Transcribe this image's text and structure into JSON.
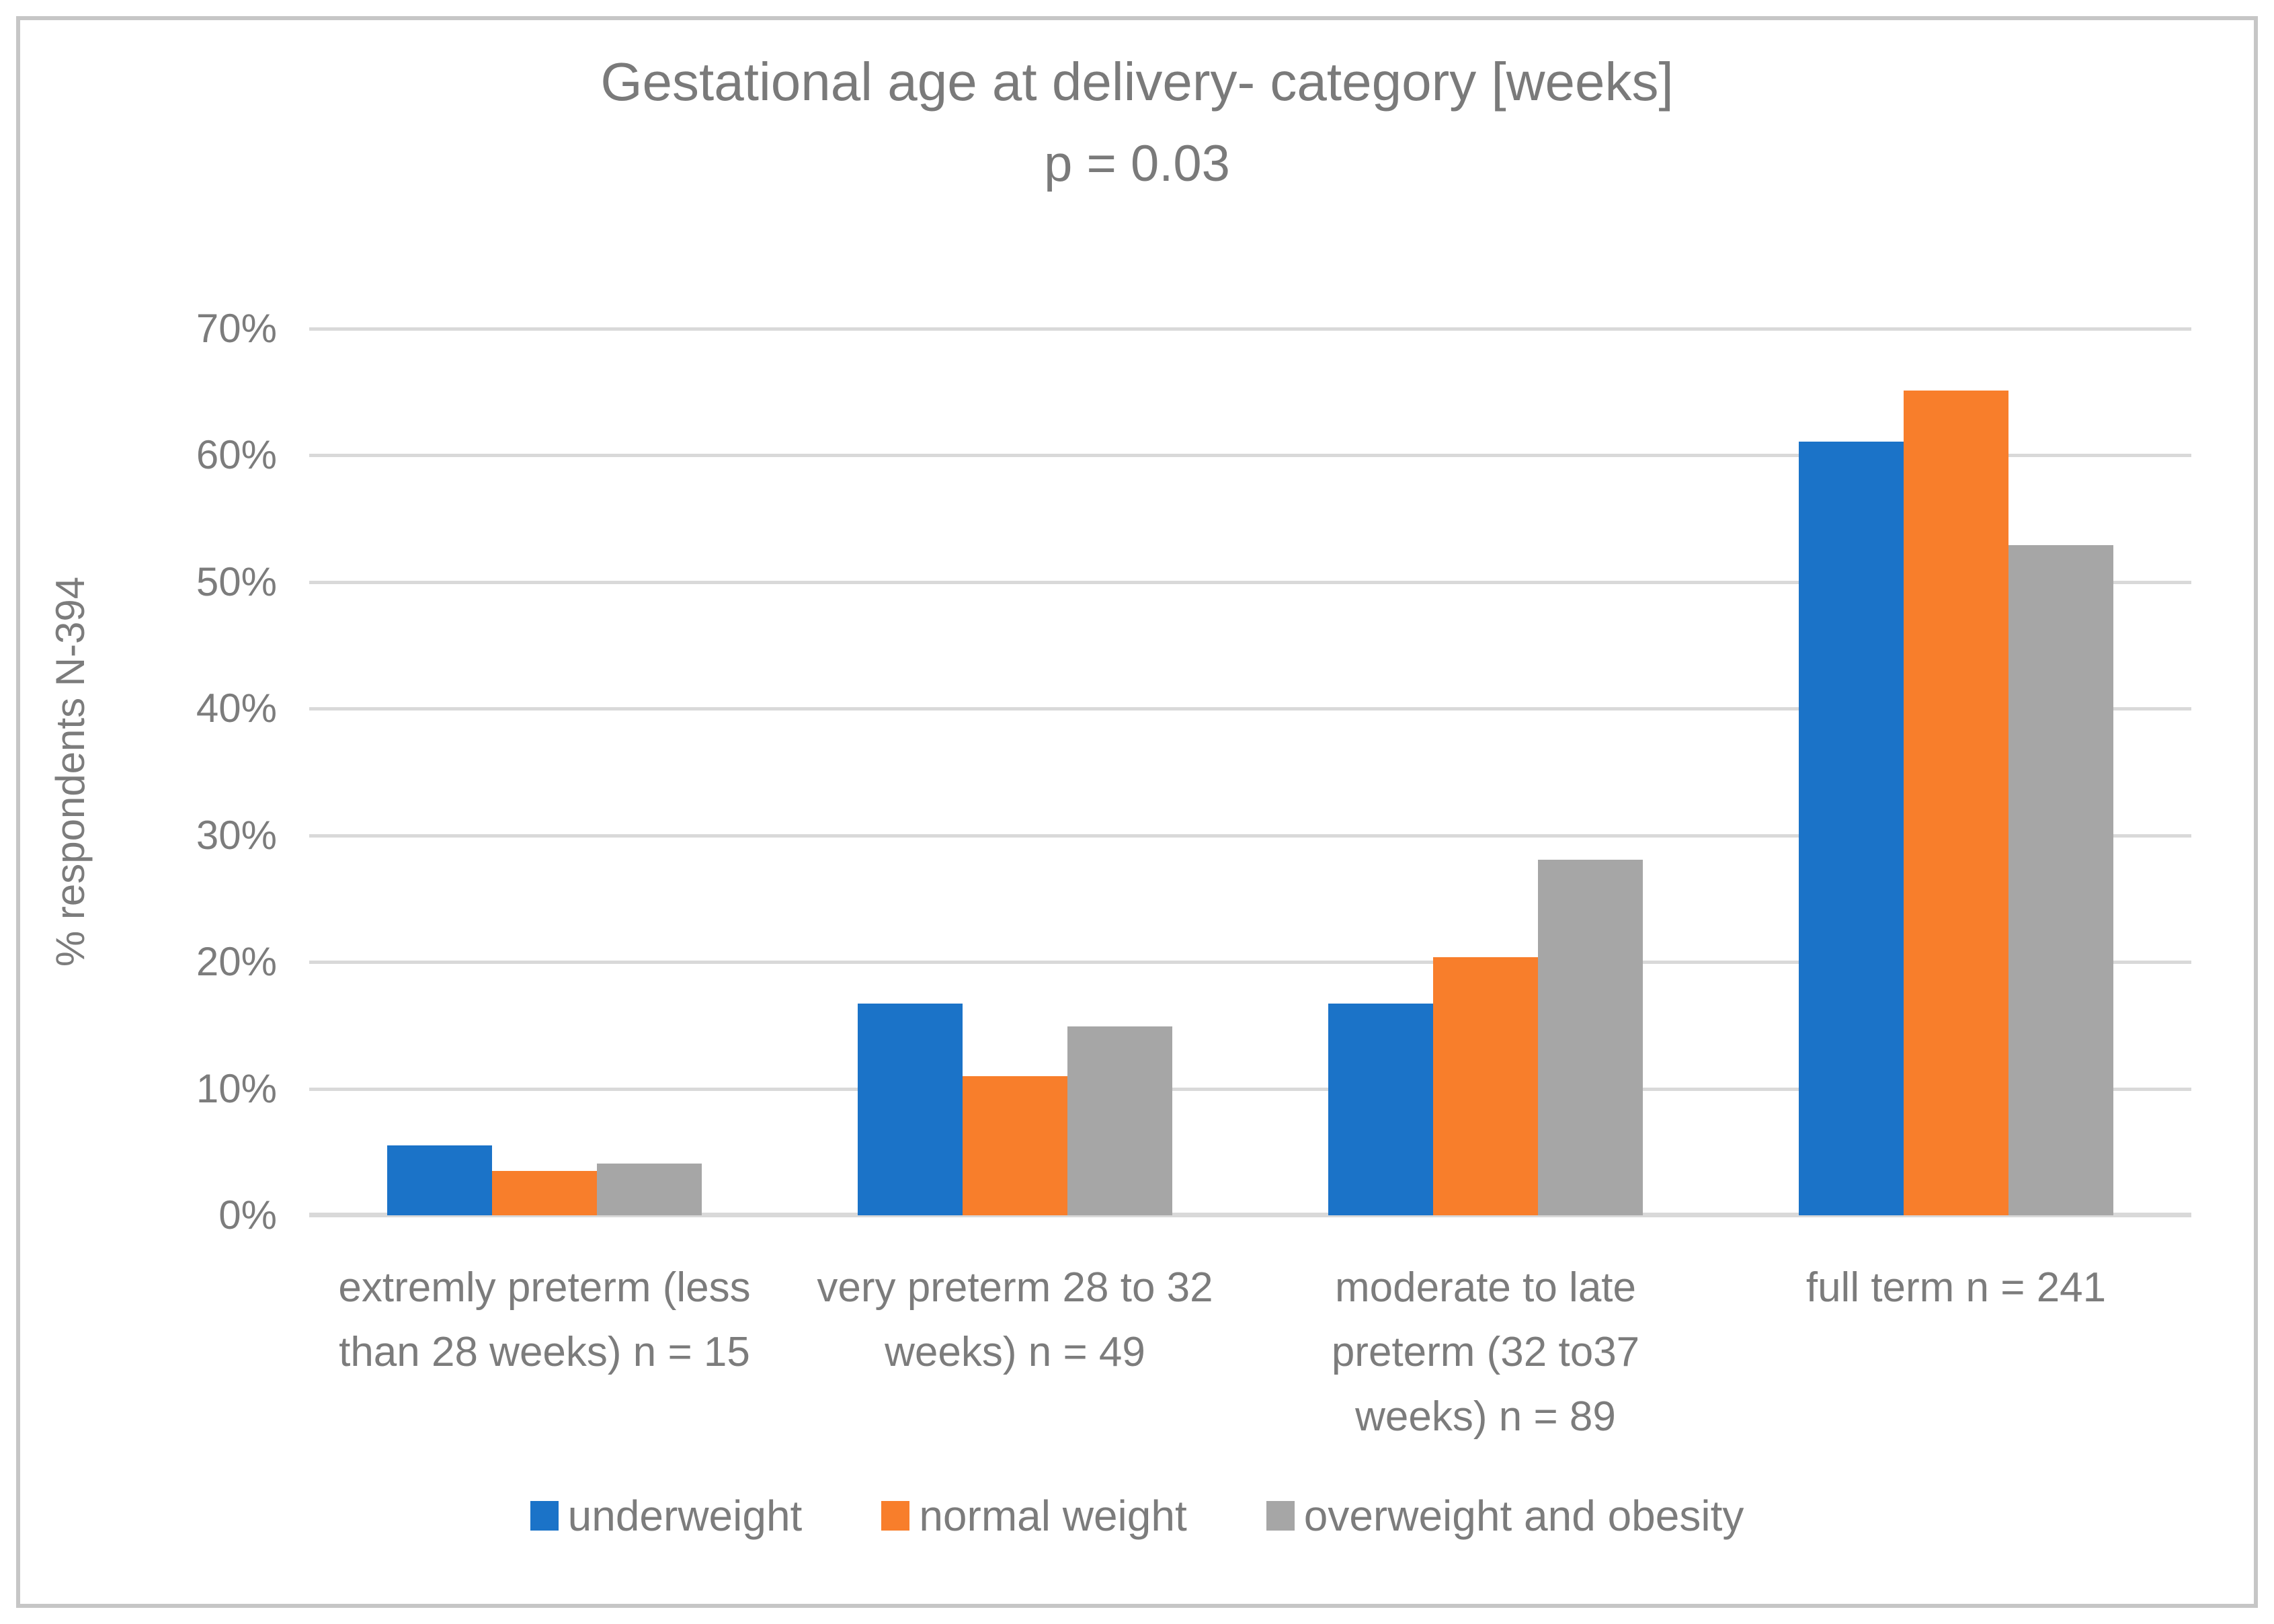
{
  "chart_data": {
    "type": "bar",
    "title": "Gestational age at delivery- category [weeks]",
    "subtitle": "p = 0.03",
    "ylabel": "% respondents N-394",
    "ylim": [
      0,
      70
    ],
    "ytick_step": 10,
    "ytick_suffix": "%",
    "grid": true,
    "legend_position": "bottom",
    "categories": [
      "extremly preterm (less than 28 weeks) n = 15",
      "very preterm 28 to 32 weeks) n = 49",
      "moderate to late preterm (32 to37 weeks) n = 89",
      "full term n = 241"
    ],
    "category_label_lines": [
      [
        "extremly preterm (less",
        "than 28 weeks) n = 15"
      ],
      [
        "very preterm 28 to 32",
        "weeks) n = 49"
      ],
      [
        "moderate to late",
        "preterm (32 to37",
        "weeks) n = 89"
      ],
      [
        "full term n = 241"
      ]
    ],
    "series": [
      {
        "name": "underweight",
        "color": "#1b73c8",
        "values": [
          5.5,
          16.7,
          16.7,
          61.1
        ]
      },
      {
        "name": "normal weight",
        "color": "#f87e2b",
        "values": [
          3.5,
          11.0,
          20.4,
          65.1
        ]
      },
      {
        "name": "overweight and obesity",
        "color": "#a6a6a6",
        "values": [
          4.1,
          14.9,
          28.1,
          52.9
        ]
      }
    ]
  },
  "style_colors": {
    "text_gray": "#7a7a7a",
    "gridline_gray": "#d9d9d9",
    "frame_border_gray": "#c6c6c6",
    "background": "#ffffff"
  }
}
